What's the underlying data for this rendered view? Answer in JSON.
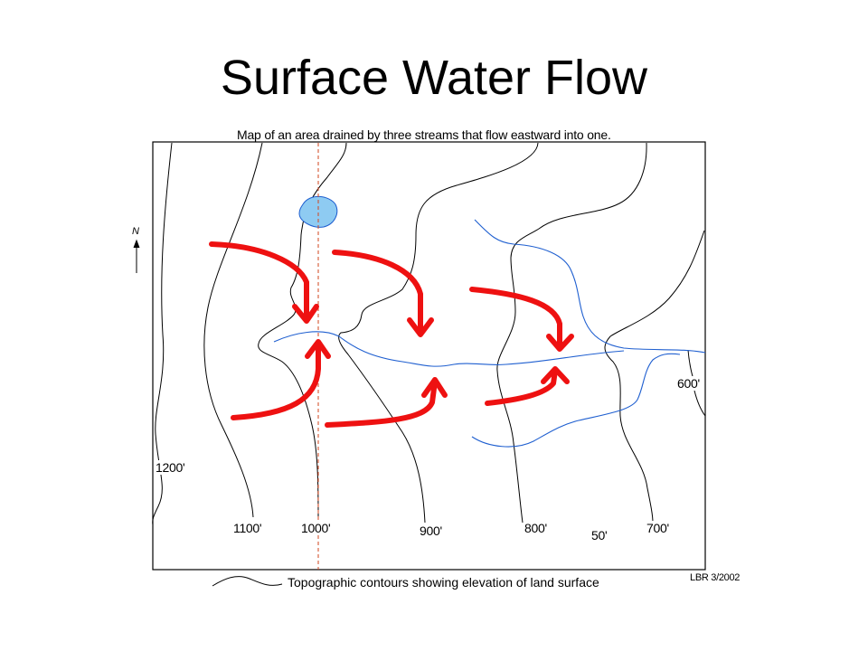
{
  "slide": {
    "title": "Surface Water Flow",
    "subtitle": "Map of an area drained by three streams that flow eastward into one."
  },
  "map": {
    "north_label": "N",
    "contour_labels": {
      "c1200": "1200'",
      "c1100": "1100'",
      "c1000": "1000'",
      "c900": "900'",
      "c800": "800'",
      "c50": "50'",
      "c700": "700'",
      "c600": "600'"
    },
    "colors": {
      "stream": "#1f5fd0",
      "pond_fill": "#8ecbf2",
      "arrow": "#ee1111",
      "reference_line": "#d2451e",
      "contour": "#000000"
    }
  },
  "legend": {
    "text": "Topographic contours showing elevation of land surface"
  },
  "credit": "LBR 3/2002"
}
